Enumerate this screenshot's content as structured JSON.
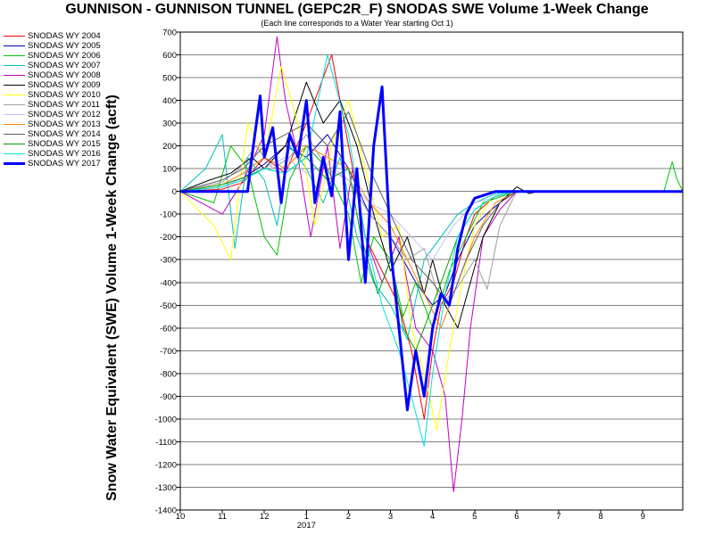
{
  "chart_data": {
    "type": "line",
    "title": "GUNNISON - GUNNISON TUNNEL (GEPC2R_F) SNODAS SWE Volume 1-Week Change",
    "subtitle": "(Each line corresponds to a Water Year starting Oct 1)",
    "ylabel": "Snow Water Equivalent (SWE) Volume 1-Week Change (acft)",
    "xlabel": "",
    "ylim": [
      -1400,
      700
    ],
    "yticks": [
      700,
      600,
      500,
      400,
      300,
      200,
      100,
      0,
      -100,
      -200,
      -300,
      -400,
      -500,
      -600,
      -700,
      -800,
      -900,
      -1000,
      -1100,
      -1200,
      -1300,
      -1400
    ],
    "xlim": [
      10,
      21.95
    ],
    "xticks": [
      {
        "value": 10,
        "label": "10"
      },
      {
        "value": 11,
        "label": "11"
      },
      {
        "value": 12,
        "label": "12"
      },
      {
        "value": 13,
        "label": "1"
      },
      {
        "value": 14,
        "label": "2"
      },
      {
        "value": 15,
        "label": "3"
      },
      {
        "value": 16,
        "label": "4"
      },
      {
        "value": 17,
        "label": "5"
      },
      {
        "value": 18,
        "label": "6"
      },
      {
        "value": 19,
        "label": "7"
      },
      {
        "value": 20,
        "label": "8"
      },
      {
        "value": 21,
        "label": "9"
      }
    ],
    "year_label": "2017",
    "grid": "horizontal",
    "legend_position": "top-left",
    "series": [
      {
        "name": "SNODAS WY 2004",
        "color": "#ff0000",
        "width": 1,
        "x": [
          10,
          11,
          11.5,
          12,
          12.5,
          13,
          13.3,
          13.6,
          14,
          14.4,
          14.8,
          15.2,
          15.5,
          15.8,
          16,
          16.2,
          16.5,
          16.8,
          17,
          17.5,
          18,
          21.95
        ],
        "y": [
          0,
          10,
          40,
          150,
          80,
          300,
          450,
          600,
          200,
          -200,
          -350,
          -500,
          -700,
          -1000,
          -700,
          -500,
          -400,
          -200,
          -100,
          -20,
          0,
          0
        ]
      },
      {
        "name": "SNODAS WY 2005",
        "color": "#0000c0",
        "width": 1,
        "x": [
          10,
          11,
          11.5,
          12,
          12.5,
          13,
          13.5,
          14,
          14.5,
          15,
          15.3,
          15.6,
          16,
          16.3,
          16.6,
          17,
          17.4,
          17.8,
          18,
          21.95
        ],
        "y": [
          0,
          20,
          60,
          120,
          200,
          150,
          250,
          100,
          -100,
          -200,
          -300,
          -400,
          -500,
          -450,
          -300,
          -150,
          -80,
          -20,
          0,
          0
        ]
      },
      {
        "name": "SNODAS WY 2006",
        "color": "#00c000",
        "width": 1,
        "x": [
          10,
          10.8,
          11.2,
          11.6,
          12,
          12.3,
          12.6,
          13,
          13.5,
          14,
          14.3,
          14.6,
          15,
          15.3,
          15.6,
          16,
          16.4,
          16.8,
          17.2,
          18,
          21.5,
          21.7,
          21.8,
          21.95
        ],
        "y": [
          0,
          -50,
          200,
          100,
          -200,
          -280,
          50,
          200,
          100,
          -100,
          -400,
          -200,
          -300,
          -550,
          -400,
          -600,
          -350,
          -200,
          -50,
          0,
          0,
          130,
          60,
          0
        ]
      },
      {
        "name": "SNODAS WY 2007",
        "color": "#00c0c0",
        "width": 1,
        "x": [
          10,
          10.6,
          11,
          11.3,
          11.6,
          12,
          12.3,
          12.6,
          13,
          13.4,
          13.8,
          14.2,
          14.6,
          15,
          15.4,
          15.8,
          16.2,
          16.6,
          17,
          17.5,
          18,
          21.95
        ],
        "y": [
          0,
          100,
          250,
          -250,
          150,
          50,
          -150,
          200,
          100,
          -50,
          150,
          -200,
          -400,
          -500,
          -650,
          -300,
          -200,
          -100,
          -50,
          -10,
          0,
          0
        ]
      },
      {
        "name": "SNODAS WY 2008",
        "color": "#c000c0",
        "width": 1,
        "x": [
          10,
          11,
          11.5,
          12,
          12.3,
          12.5,
          12.8,
          13.1,
          13.5,
          13.8,
          14.1,
          14.4,
          14.8,
          15.2,
          15.6,
          16,
          16.3,
          16.5,
          16.7,
          16.9,
          17.2,
          17.6,
          18,
          21.95
        ],
        "y": [
          0,
          -100,
          50,
          250,
          680,
          400,
          150,
          -200,
          200,
          -250,
          100,
          -200,
          -400,
          -200,
          -600,
          -700,
          -900,
          -1320,
          -1000,
          -600,
          -200,
          -80,
          0,
          0
        ]
      },
      {
        "name": "SNODAS WY 2009",
        "color": "#000000",
        "width": 1,
        "x": [
          10,
          10.7,
          11.2,
          11.7,
          12,
          12.5,
          13,
          13.4,
          13.8,
          14.2,
          14.6,
          15,
          15.4,
          15.8,
          16,
          16.3,
          16.6,
          16.9,
          17.2,
          17.6,
          18,
          18.3,
          18.5,
          21.95
        ],
        "y": [
          0,
          50,
          80,
          150,
          100,
          200,
          480,
          300,
          400,
          200,
          -100,
          -350,
          -200,
          -450,
          -300,
          -500,
          -600,
          -400,
          -200,
          -50,
          20,
          -10,
          0,
          0
        ]
      },
      {
        "name": "SNODAS WY 2010",
        "color": "#ffff00",
        "width": 1,
        "x": [
          10,
          10.8,
          11.2,
          11.6,
          12,
          12.4,
          12.8,
          13.2,
          13.6,
          14,
          14.4,
          14.8,
          15.2,
          15.5,
          15.8,
          16.1,
          16.4,
          16.7,
          17,
          17.4,
          18,
          21.95
        ],
        "y": [
          0,
          -150,
          -300,
          300,
          150,
          550,
          300,
          -150,
          200,
          400,
          100,
          -200,
          -150,
          -600,
          -800,
          -1050,
          -700,
          -400,
          -150,
          -30,
          0,
          0
        ]
      },
      {
        "name": "SNODAS WY 2011",
        "color": "#a0a0a0",
        "width": 1,
        "x": [
          10,
          11,
          11.4,
          11.8,
          12.2,
          12.6,
          13,
          13.5,
          14,
          14.5,
          15,
          15.4,
          15.8,
          16.2,
          16.6,
          17,
          17.3,
          17.6,
          18,
          21.95
        ],
        "y": [
          0,
          40,
          100,
          200,
          100,
          150,
          250,
          100,
          50,
          -100,
          -200,
          -300,
          -250,
          -500,
          -420,
          -300,
          -430,
          -150,
          0,
          0
        ]
      },
      {
        "name": "SNODAS WY 2012",
        "color": "#c0c0ff",
        "width": 1,
        "x": [
          10,
          11,
          11.5,
          12,
          12.5,
          13,
          13.5,
          14,
          14.5,
          15,
          15.5,
          16,
          16.5,
          17,
          18,
          21.95
        ],
        "y": [
          0,
          20,
          60,
          100,
          150,
          80,
          120,
          50,
          -50,
          -100,
          -200,
          -300,
          -150,
          -50,
          0,
          0
        ]
      },
      {
        "name": "SNODAS WY 2013",
        "color": "#ff8000",
        "width": 1,
        "x": [
          10,
          11,
          11.5,
          12,
          12.5,
          13,
          13.5,
          14,
          14.5,
          15,
          15.4,
          15.8,
          16.2,
          16.6,
          17,
          17.5,
          18,
          21.95
        ],
        "y": [
          0,
          30,
          80,
          150,
          100,
          200,
          150,
          100,
          -50,
          -150,
          -300,
          -450,
          -600,
          -400,
          -200,
          -50,
          0,
          0
        ]
      },
      {
        "name": "SNODAS WY 2014",
        "color": "#606060",
        "width": 1,
        "x": [
          10,
          11,
          11.5,
          12,
          12.5,
          13,
          13.5,
          14,
          14.5,
          15,
          15.5,
          16,
          16.4,
          16.8,
          17.2,
          17.6,
          18,
          21.95
        ],
        "y": [
          0,
          50,
          100,
          200,
          250,
          300,
          200,
          350,
          100,
          -100,
          -300,
          -400,
          -500,
          -300,
          -150,
          -50,
          0,
          0
        ]
      },
      {
        "name": "SNODAS WY 2015",
        "color": "#00a000",
        "width": 1,
        "x": [
          10,
          11,
          11.5,
          12,
          12.5,
          13,
          13.5,
          14,
          14.3,
          14.7,
          15,
          15.3,
          15.6,
          16,
          16.3,
          16.6,
          17,
          17.5,
          18,
          21.95
        ],
        "y": [
          0,
          30,
          60,
          100,
          80,
          150,
          50,
          100,
          -200,
          -450,
          -300,
          -600,
          -700,
          -500,
          -350,
          -200,
          -80,
          -20,
          0,
          0
        ]
      },
      {
        "name": "SNODAS WY 2016",
        "color": "#00e0e0",
        "width": 1,
        "x": [
          10,
          11,
          11.5,
          12,
          12.5,
          13,
          13.5,
          14,
          14.4,
          14.8,
          15.2,
          15.5,
          15.8,
          16,
          16.3,
          16.6,
          17,
          17.5,
          18,
          21.95
        ],
        "y": [
          0,
          20,
          50,
          100,
          80,
          150,
          600,
          250,
          -200,
          -500,
          -700,
          -900,
          -1120,
          -800,
          -450,
          -200,
          -80,
          -20,
          0,
          0
        ]
      },
      {
        "name": "SNODAS WY 2017",
        "color": "#0000ff",
        "width": 3,
        "x": [
          10,
          11.6,
          11.7,
          11.9,
          12,
          12.2,
          12.4,
          12.6,
          12.8,
          13,
          13.2,
          13.4,
          13.6,
          13.8,
          14,
          14.2,
          14.4,
          14.6,
          14.8,
          15,
          15.2,
          15.4,
          15.6,
          15.8,
          16,
          16.2,
          16.4,
          16.6,
          16.8,
          17,
          17.5,
          18,
          21.95
        ],
        "y": [
          0,
          0,
          150,
          420,
          150,
          280,
          -50,
          250,
          150,
          400,
          -50,
          150,
          -20,
          350,
          -300,
          100,
          -400,
          200,
          460,
          -250,
          -600,
          -960,
          -700,
          -900,
          -600,
          -450,
          -500,
          -250,
          -100,
          -30,
          0,
          0,
          0
        ]
      }
    ]
  }
}
